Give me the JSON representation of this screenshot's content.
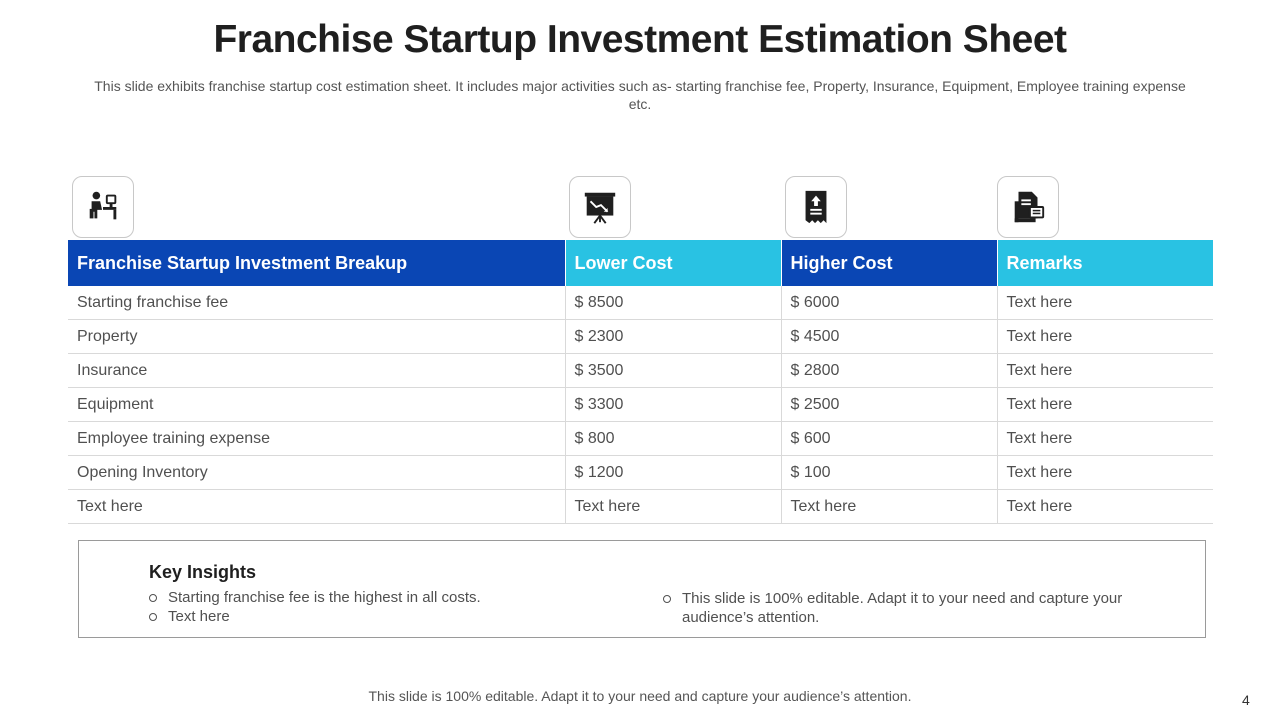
{
  "title": "Franchise Startup Investment Estimation Sheet",
  "subtitle": "This slide exhibits franchise startup cost estimation sheet. It includes major activities such as- starting franchise fee, Property, Insurance, Equipment, Employee training expense etc.",
  "icons": [
    "employee-desk-icon",
    "presentation-board-icon",
    "document-upload-icon",
    "documents-icon"
  ],
  "table": {
    "headers": [
      "Franchise Startup Investment Breakup",
      "Lower Cost",
      "Higher Cost",
      "Remarks"
    ],
    "header_colors": [
      "#0a46b4",
      "#29c2e3",
      "#0a46b4",
      "#29c2e3"
    ],
    "rows": [
      [
        "Starting franchise fee",
        "$ 8500",
        "$ 6000",
        "Text here"
      ],
      [
        "Property",
        "$ 2300",
        "$ 4500",
        "Text here"
      ],
      [
        "Insurance",
        "$ 3500",
        "$ 2800",
        "Text here"
      ],
      [
        "Equipment",
        "$ 3300",
        "$ 2500",
        "Text here"
      ],
      [
        "Employee training expense",
        "$ 800",
        "$ 600",
        "Text here"
      ],
      [
        "Opening Inventory",
        "$ 1200",
        "$ 100",
        "Text here"
      ],
      [
        "Text here",
        "Text here",
        "Text here",
        "Text here"
      ]
    ]
  },
  "insights": {
    "title": "Key Insights",
    "left_bullets": [
      "Starting franchise fee is the highest in all costs.",
      "Text here"
    ],
    "right_bullets": [
      "This slide is 100% editable. Adapt it to your need and capture your audience’s attention."
    ]
  },
  "footer": "This slide is 100% editable. Adapt it to your need and capture your audience’s attention.",
  "page_number": "4"
}
